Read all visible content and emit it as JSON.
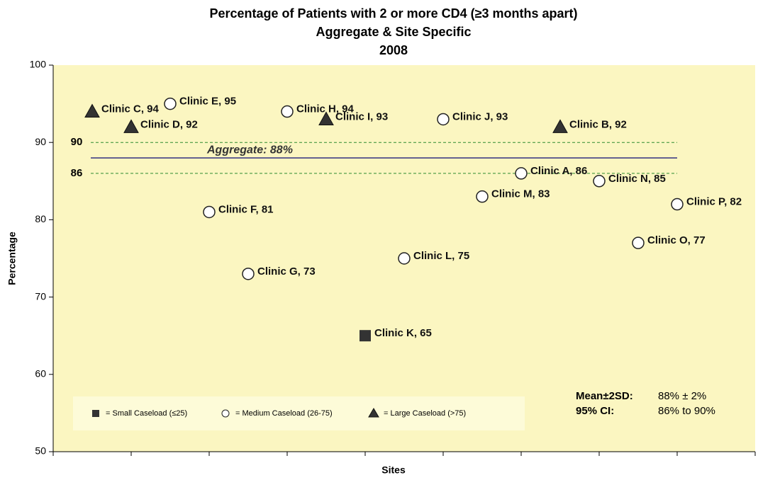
{
  "chart_data": {
    "type": "scatter",
    "title": "Percentage of Patients with 2 or more CD4 (≥3 months apart)",
    "subtitle": "Aggregate & Site Specific",
    "subtitle2": "2008",
    "x_label": "Sites",
    "y_label": "Percentage",
    "xlim": [
      0,
      9
    ],
    "xticks": [
      0,
      1,
      2,
      3,
      4,
      5,
      6,
      7,
      8,
      9
    ],
    "ylim": [
      50,
      100
    ],
    "yticks": [
      50,
      60,
      70,
      80,
      90,
      100
    ],
    "series": [
      {
        "name": "= Small Caseload (≤25)",
        "marker": "square",
        "color": "#333333",
        "x": [
          4
        ],
        "values": [
          65
        ],
        "labels": [
          "Clinic K, 65"
        ]
      },
      {
        "name": "= Medium Caseload (26-75)",
        "marker": "circle",
        "color": "#ffffff",
        "x": [
          1.5,
          2,
          2.5,
          3,
          4.5,
          5,
          5.5,
          6,
          7,
          7.5,
          8
        ],
        "values": [
          95,
          81,
          73,
          94,
          75,
          93,
          83,
          86,
          85,
          77,
          82
        ],
        "labels": [
          "Clinic E, 95",
          "Clinic F, 81",
          "Clinic G, 73",
          "Clinic H, 94",
          "Clinic L, 75",
          "Clinic J, 93",
          "Clinic M, 83",
          "Clinic A, 86",
          "Clinic N, 85",
          "Clinic O, 77",
          "Clinic P, 82"
        ]
      },
      {
        "name": "= Large Caseload (>75)",
        "marker": "triangle",
        "color": "#333333",
        "x": [
          0.5,
          1,
          3.5,
          6.5
        ],
        "values": [
          94,
          92,
          93,
          92
        ],
        "labels": [
          "Clinic C, 94",
          "Clinic D, 92",
          "Clinic I, 93",
          "Clinic B, 92"
        ]
      }
    ],
    "reference_lines": [
      {
        "value": 90,
        "label": "90",
        "style": "dashed",
        "color": "#2e8b2e"
      },
      {
        "value": 86,
        "label": "86",
        "style": "dashed",
        "color": "#2e8b2e"
      },
      {
        "value": 88,
        "label": "Aggregate: 88%",
        "style": "solid",
        "color": "#1f1f7a"
      }
    ],
    "stats": [
      {
        "name": "Mean±2SD:",
        "text": "88% ± 2%"
      },
      {
        "name": "95% CI:",
        "text": "86% to 90%"
      }
    ]
  }
}
